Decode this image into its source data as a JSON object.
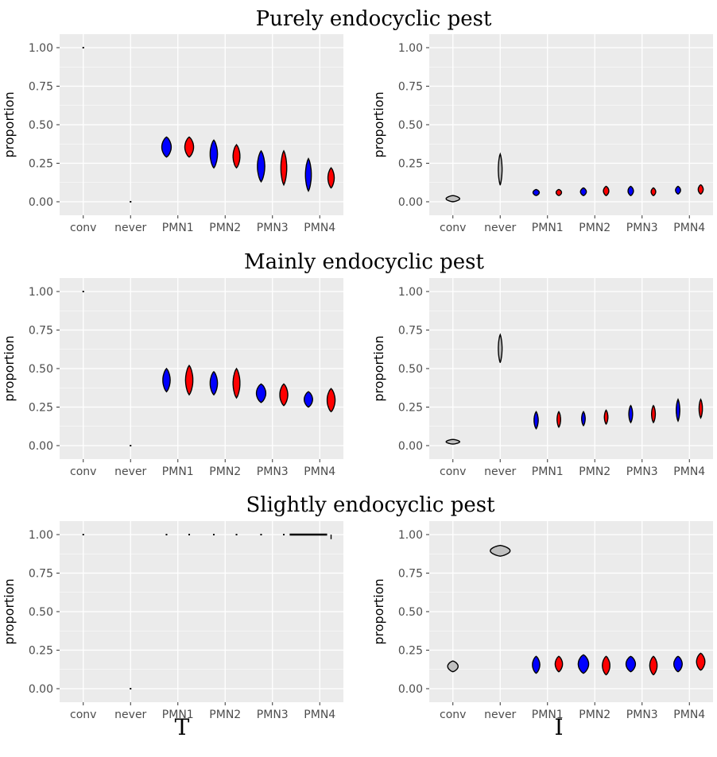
{
  "row_titles": [
    "Purely endocyclic pest",
    "Mainly endocyclic pest",
    "Slightly endocyclic pest"
  ],
  "col_labels": [
    "T",
    "I"
  ],
  "colors": {
    "panel_bg": "#ebebeb",
    "grid": "#ffffff",
    "conv": "#c0c0c0",
    "never": "#c0c0c0",
    "odd": "#0000ff",
    "even": "#ff0000"
  },
  "chart_data": [
    {
      "type": "violin",
      "row": "Purely endocyclic pest",
      "column": "T",
      "categories": [
        "conv",
        "never",
        "PMN1",
        "PMN2",
        "PMN3",
        "PMN4"
      ],
      "ylabel": "proportion",
      "ylim": [
        0,
        1
      ],
      "yticks": [
        "0.00",
        "0.25",
        "0.50",
        "0.75",
        "1.00"
      ],
      "series": [
        {
          "category": "conv",
          "values": [
            1.0,
            1.0
          ],
          "width": 0.0
        },
        {
          "category": "never",
          "values": [
            0.0,
            0.0
          ],
          "width": 0.0
        },
        {
          "category": "PMN1",
          "values": [
            0.29,
            0.42
          ],
          "width": 0.45
        },
        {
          "category": "PMN1",
          "values": [
            0.29,
            0.42
          ],
          "width": 0.42
        },
        {
          "category": "PMN2",
          "values": [
            0.22,
            0.4
          ],
          "width": 0.35
        },
        {
          "category": "PMN2",
          "values": [
            0.22,
            0.37
          ],
          "width": 0.33
        },
        {
          "category": "PMN3",
          "values": [
            0.13,
            0.33
          ],
          "width": 0.35
        },
        {
          "category": "PMN3",
          "values": [
            0.11,
            0.33
          ],
          "width": 0.28
        },
        {
          "category": "PMN4",
          "values": [
            0.07,
            0.28
          ],
          "width": 0.28
        },
        {
          "category": "PMN4",
          "values": [
            0.09,
            0.22
          ],
          "width": 0.3
        }
      ]
    },
    {
      "type": "violin",
      "row": "Purely endocyclic pest",
      "column": "I",
      "categories": [
        "conv",
        "never",
        "PMN1",
        "PMN2",
        "PMN3",
        "PMN4"
      ],
      "ylabel": "proportion",
      "ylim": [
        0,
        1
      ],
      "yticks": [
        "0.00",
        "0.25",
        "0.50",
        "0.75",
        "1.00"
      ],
      "series": [
        {
          "category": "conv",
          "values": [
            0.0,
            0.04
          ],
          "width": 0.65
        },
        {
          "category": "never",
          "values": [
            0.11,
            0.31
          ],
          "width": 0.18
        },
        {
          "category": "PMN1",
          "values": [
            0.04,
            0.08
          ],
          "width": 0.3
        },
        {
          "category": "PMN1",
          "values": [
            0.04,
            0.08
          ],
          "width": 0.26
        },
        {
          "category": "PMN2",
          "values": [
            0.04,
            0.09
          ],
          "width": 0.28
        },
        {
          "category": "PMN2",
          "values": [
            0.04,
            0.1
          ],
          "width": 0.26
        },
        {
          "category": "PMN3",
          "values": [
            0.04,
            0.1
          ],
          "width": 0.26
        },
        {
          "category": "PMN3",
          "values": [
            0.04,
            0.09
          ],
          "width": 0.22
        },
        {
          "category": "PMN4",
          "values": [
            0.05,
            0.1
          ],
          "width": 0.24
        },
        {
          "category": "PMN4",
          "values": [
            0.05,
            0.11
          ],
          "width": 0.24
        }
      ]
    },
    {
      "type": "violin",
      "row": "Mainly endocyclic pest",
      "column": "T",
      "categories": [
        "conv",
        "never",
        "PMN1",
        "PMN2",
        "PMN3",
        "PMN4"
      ],
      "ylabel": "proportion",
      "ylim": [
        0,
        1
      ],
      "yticks": [
        "0.00",
        "0.25",
        "0.50",
        "0.75",
        "1.00"
      ],
      "series": [
        {
          "category": "conv",
          "values": [
            1.0,
            1.0
          ],
          "width": 0.0
        },
        {
          "category": "never",
          "values": [
            0.0,
            0.0
          ],
          "width": 0.0
        },
        {
          "category": "PMN1",
          "values": [
            0.35,
            0.5
          ],
          "width": 0.35
        },
        {
          "category": "PMN1",
          "values": [
            0.33,
            0.52
          ],
          "width": 0.35
        },
        {
          "category": "PMN2",
          "values": [
            0.33,
            0.48
          ],
          "width": 0.35
        },
        {
          "category": "PMN2",
          "values": [
            0.31,
            0.5
          ],
          "width": 0.33
        },
        {
          "category": "PMN3",
          "values": [
            0.28,
            0.4
          ],
          "width": 0.45
        },
        {
          "category": "PMN3",
          "values": [
            0.26,
            0.4
          ],
          "width": 0.38
        },
        {
          "category": "PMN4",
          "values": [
            0.25,
            0.35
          ],
          "width": 0.4
        },
        {
          "category": "PMN4",
          "values": [
            0.22,
            0.37
          ],
          "width": 0.38
        }
      ]
    },
    {
      "type": "violin",
      "row": "Mainly endocyclic pest",
      "column": "I",
      "categories": [
        "conv",
        "never",
        "PMN1",
        "PMN2",
        "PMN3",
        "PMN4"
      ],
      "ylabel": "proportion",
      "ylim": [
        0,
        1
      ],
      "yticks": [
        "0.00",
        "0.25",
        "0.50",
        "0.75",
        "1.00"
      ],
      "series": [
        {
          "category": "conv",
          "values": [
            0.01,
            0.04
          ],
          "width": 0.65
        },
        {
          "category": "never",
          "values": [
            0.54,
            0.72
          ],
          "width": 0.18
        },
        {
          "category": "PMN1",
          "values": [
            0.11,
            0.22
          ],
          "width": 0.2
        },
        {
          "category": "PMN1",
          "values": [
            0.12,
            0.22
          ],
          "width": 0.17
        },
        {
          "category": "PMN2",
          "values": [
            0.13,
            0.22
          ],
          "width": 0.17
        },
        {
          "category": "PMN2",
          "values": [
            0.14,
            0.23
          ],
          "width": 0.17
        },
        {
          "category": "PMN3",
          "values": [
            0.15,
            0.26
          ],
          "width": 0.18
        },
        {
          "category": "PMN3",
          "values": [
            0.15,
            0.26
          ],
          "width": 0.18
        },
        {
          "category": "PMN4",
          "values": [
            0.16,
            0.3
          ],
          "width": 0.17
        },
        {
          "category": "PMN4",
          "values": [
            0.18,
            0.3
          ],
          "width": 0.16
        }
      ]
    },
    {
      "type": "violin",
      "row": "Slightly endocyclic pest",
      "column": "T",
      "categories": [
        "conv",
        "never",
        "PMN1",
        "PMN2",
        "PMN3",
        "PMN4"
      ],
      "ylabel": "proportion",
      "ylim": [
        0,
        1
      ],
      "yticks": [
        "0.00",
        "0.25",
        "0.50",
        "0.75",
        "1.00"
      ],
      "series": [
        {
          "category": "conv",
          "values": [
            1.0,
            1.0
          ],
          "width": 0.0
        },
        {
          "category": "never",
          "values": [
            0.0,
            0.0
          ],
          "width": 0.0
        },
        {
          "category": "PMN1",
          "values": [
            1.0,
            1.0
          ],
          "width": 0.0
        },
        {
          "category": "PMN1",
          "values": [
            1.0,
            1.0
          ],
          "width": 0.0
        },
        {
          "category": "PMN2",
          "values": [
            1.0,
            1.0
          ],
          "width": 0.0
        },
        {
          "category": "PMN2",
          "values": [
            1.0,
            1.0
          ],
          "width": 0.0
        },
        {
          "category": "PMN3",
          "values": [
            1.0,
            1.0
          ],
          "width": 0.0
        },
        {
          "category": "PMN3",
          "values": [
            1.0,
            1.0
          ],
          "width": 0.0
        },
        {
          "category": "PMN4",
          "values": [
            1.0,
            1.0
          ],
          "width": 0.9
        },
        {
          "category": "PMN4",
          "values": [
            0.97,
            1.0
          ],
          "width": 0.0
        }
      ]
    },
    {
      "type": "violin",
      "row": "Slightly endocyclic pest",
      "column": "I",
      "categories": [
        "conv",
        "never",
        "PMN1",
        "PMN2",
        "PMN3",
        "PMN4"
      ],
      "ylabel": "proportion",
      "ylim": [
        0,
        1
      ],
      "yticks": [
        "0.00",
        "0.25",
        "0.50",
        "0.75",
        "1.00"
      ],
      "series": [
        {
          "category": "conv",
          "values": [
            0.11,
            0.18
          ],
          "width": 0.5
        },
        {
          "category": "never",
          "values": [
            0.86,
            0.93
          ],
          "width": 0.95
        },
        {
          "category": "PMN1",
          "values": [
            0.1,
            0.21
          ],
          "width": 0.35
        },
        {
          "category": "PMN1",
          "values": [
            0.11,
            0.21
          ],
          "width": 0.35
        },
        {
          "category": "PMN2",
          "values": [
            0.1,
            0.22
          ],
          "width": 0.5
        },
        {
          "category": "PMN2",
          "values": [
            0.09,
            0.21
          ],
          "width": 0.36
        },
        {
          "category": "PMN3",
          "values": [
            0.11,
            0.21
          ],
          "width": 0.45
        },
        {
          "category": "PMN3",
          "values": [
            0.09,
            0.21
          ],
          "width": 0.35
        },
        {
          "category": "PMN4",
          "values": [
            0.11,
            0.21
          ],
          "width": 0.4
        },
        {
          "category": "PMN4",
          "values": [
            0.12,
            0.23
          ],
          "width": 0.4
        }
      ]
    }
  ]
}
